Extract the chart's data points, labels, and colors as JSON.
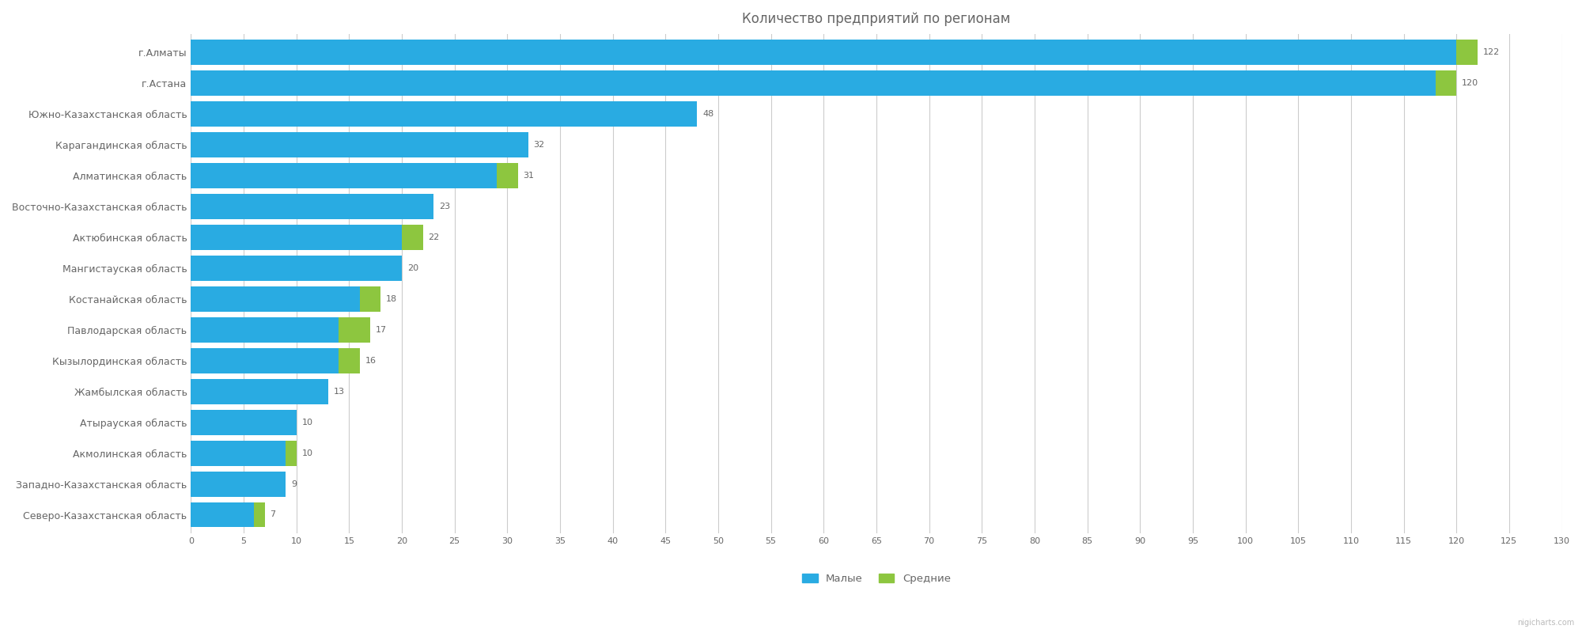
{
  "title": "Количество предприятий по регионам",
  "regions": [
    "г.Алматы",
    "г.Астана",
    "Южно-Казахстанская область",
    "Карагандинская область",
    "Алматинская область",
    "Восточно-Казахстанская область",
    "Актюбинская область",
    "Мангистауская область",
    "Костанайская область",
    "Павлодарская область",
    "Кызылординская область",
    "Жамбылская область",
    "Атырауская область",
    "Акмолинская область",
    "Западно-Казахстанская область",
    "Северо-Казахстанская область"
  ],
  "malyye": [
    120,
    118,
    48,
    32,
    29,
    23,
    20,
    20,
    16,
    14,
    14,
    13,
    10,
    9,
    9,
    6
  ],
  "srednie": [
    2,
    2,
    0,
    0,
    2,
    0,
    2,
    0,
    2,
    3,
    2,
    0,
    0,
    1,
    0,
    1
  ],
  "totals": [
    122,
    120,
    48,
    32,
    31,
    23,
    22,
    20,
    18,
    17,
    16,
    13,
    10,
    10,
    9,
    7
  ],
  "color_malyye": "#29ABE2",
  "color_srednie": "#8DC63F",
  "color_gridline": "#CCCCCC",
  "color_text": "#666666",
  "color_bg": "#FFFFFF",
  "xlim": [
    0,
    130
  ],
  "xticks": [
    0,
    5,
    10,
    15,
    20,
    25,
    30,
    35,
    40,
    45,
    50,
    55,
    60,
    65,
    70,
    75,
    80,
    85,
    90,
    95,
    100,
    105,
    110,
    115,
    120,
    125,
    130
  ],
  "legend_malyye": "Малые",
  "legend_srednie": "Средние",
  "bar_height": 0.82,
  "title_fontsize": 12,
  "label_fontsize": 9,
  "tick_fontsize": 8,
  "annotation_fontsize": 8,
  "watermark": "nigicharts.com"
}
